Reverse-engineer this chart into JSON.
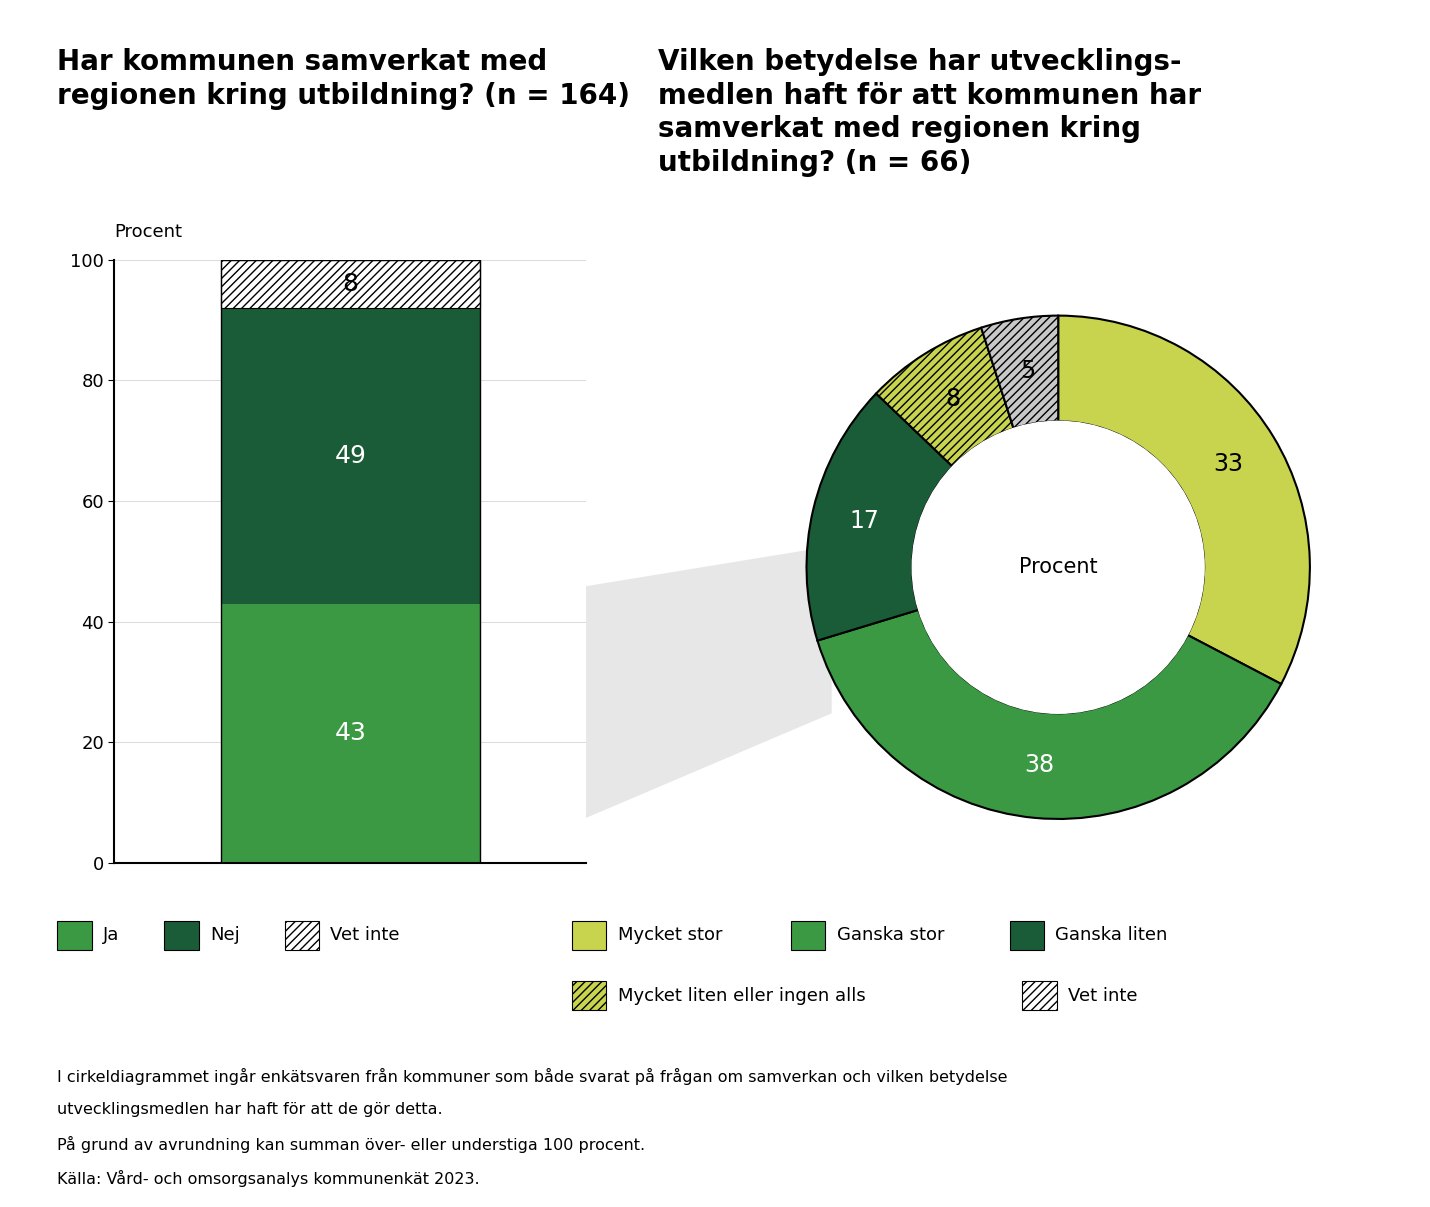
{
  "bar_title": "Har kommunen samverkat med\nregionen kring utbildning? (n = 164)",
  "pie_title": "Vilken betydelse har utvecklings-\nmedlen haft för att kommunen har\nsamverkat med regionen kring\nutbildning? (n = 66)",
  "bar_ylabel": "Procent",
  "bar_values": [
    43,
    49,
    8
  ],
  "bar_labels": [
    "Ja",
    "Nej",
    "Vet inte"
  ],
  "bar_colors": [
    "#3a9942",
    "#1a5c38",
    "#c8c8c8"
  ],
  "bar_hatch": [
    null,
    null,
    "////"
  ],
  "pie_values": [
    33,
    38,
    17,
    8,
    5
  ],
  "pie_labels": [
    "Mycket stor",
    "Ganska stor",
    "Ganska liten",
    "Mycket liten eller ingen alls",
    "Vet inte"
  ],
  "pie_colors": [
    "#c8d44e",
    "#3a9942",
    "#1a5c38",
    "#c8d44e",
    "#c8c8c8"
  ],
  "pie_hatch": [
    null,
    null,
    null,
    "////",
    "////"
  ],
  "pie_center_label": "Procent",
  "legend_bar": [
    {
      "label": "Ja",
      "color": "#3a9942",
      "hatch": null
    },
    {
      "label": "Nej",
      "color": "#1a5c38",
      "hatch": null
    },
    {
      "label": "Vet inte",
      "color": "#c8c8c8",
      "hatch": "////"
    }
  ],
  "legend_pie_row1": [
    {
      "label": "Mycket stor",
      "color": "#c8d44e",
      "hatch": null
    },
    {
      "label": "Ganska stor",
      "color": "#3a9942",
      "hatch": null
    },
    {
      "label": "Ganska liten",
      "color": "#1a5c38",
      "hatch": null
    }
  ],
  "legend_pie_row2": [
    {
      "label": "Mycket liten eller ingen alls",
      "color": "#c8d44e",
      "hatch": "////"
    },
    {
      "label": "Vet inte",
      "color": "#c8c8c8",
      "hatch": "////"
    }
  ],
  "footnote1": "I cirkeldiagrammet ingår enkätsvaren från kommuner som både svarat på frågan om samverkan och vilken betydelse",
  "footnote2": "utvecklingsmedlen har haft för att de gör detta.",
  "footnote3": "På grund av avrundning kan summan över- eller understiga 100 procent.",
  "footnote4": "Källa: Vård- och omsorgsanalys kommunenkät 2023.",
  "pie_text_colors": [
    "black",
    "white",
    "white",
    "black",
    "black"
  ]
}
